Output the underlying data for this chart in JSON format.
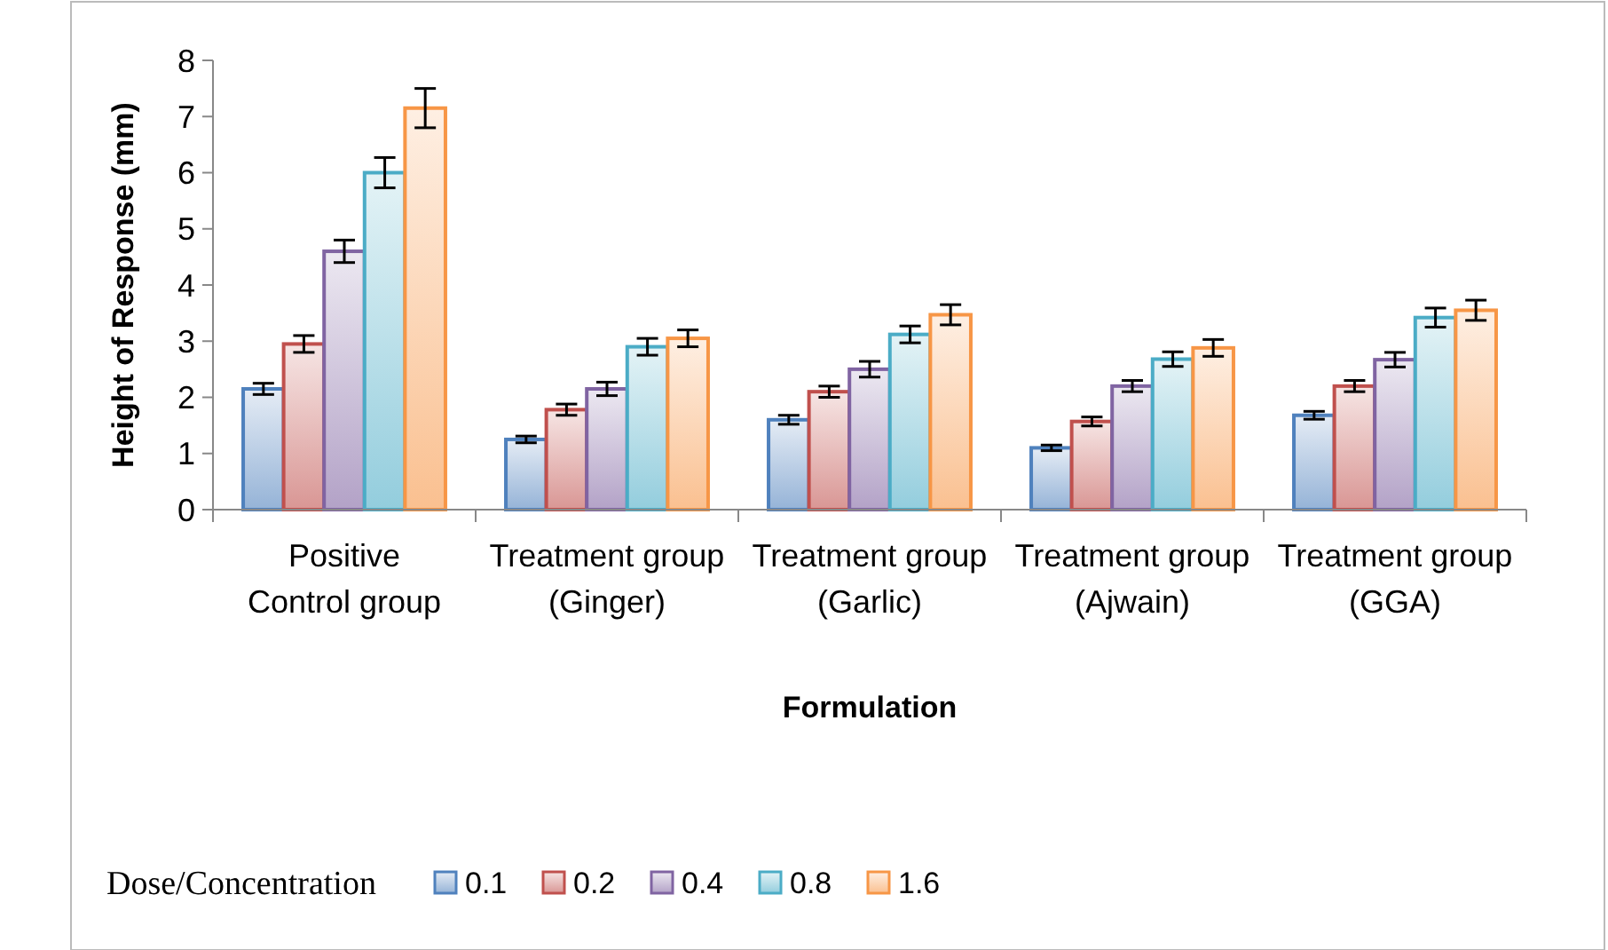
{
  "chart_data": {
    "type": "bar",
    "xlabel": "Formulation",
    "ylabel": "Height of Response (mm)",
    "legend_title": "Dose/Concentration",
    "categories": [
      "Positive Control group",
      "Treatment group (Ginger)",
      "Treatment group (Garlic)",
      "Treatment group (Ajwain)",
      "Treatment group (GGA)"
    ],
    "series": [
      {
        "name": "0.1",
        "color": "#4f81bd",
        "values": [
          2.15,
          1.25,
          1.6,
          1.1,
          1.68
        ],
        "errors": [
          0.1,
          0.06,
          0.08,
          0.05,
          0.07
        ]
      },
      {
        "name": "0.2",
        "color": "#c0504d",
        "values": [
          2.95,
          1.78,
          2.1,
          1.57,
          2.2
        ],
        "errors": [
          0.15,
          0.1,
          0.1,
          0.08,
          0.1
        ]
      },
      {
        "name": "0.4",
        "color": "#8064a2",
        "values": [
          4.6,
          2.15,
          2.5,
          2.2,
          2.67
        ],
        "errors": [
          0.2,
          0.12,
          0.14,
          0.1,
          0.13
        ]
      },
      {
        "name": "0.8",
        "color": "#4bacc6",
        "values": [
          6.0,
          2.9,
          3.12,
          2.68,
          3.42
        ],
        "errors": [
          0.27,
          0.15,
          0.15,
          0.13,
          0.17
        ]
      },
      {
        "name": "1.6",
        "color": "#f79646",
        "values": [
          7.15,
          3.05,
          3.47,
          2.88,
          3.55
        ],
        "errors": [
          0.35,
          0.15,
          0.18,
          0.15,
          0.18
        ]
      }
    ],
    "ylim": [
      0,
      8
    ],
    "yticks": [
      0,
      1,
      2,
      3,
      4,
      5,
      6,
      7,
      8
    ],
    "grid": false,
    "legend": "bottom"
  }
}
